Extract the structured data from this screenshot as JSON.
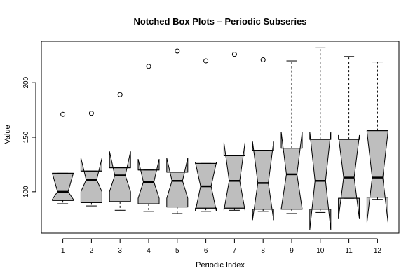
{
  "chart_data": {
    "type": "box",
    "title": "Notched Box Plots – Periodic Subseries",
    "xlabel": "Periodic Index",
    "ylabel": "Value",
    "ylim": [
      62,
      238
    ],
    "yticks": [
      100,
      150,
      200
    ],
    "box_fill": "#bebebe",
    "boxes": [
      {
        "label": "1",
        "lower_whisker": 89,
        "q1": 92,
        "median": 100,
        "q3": 117,
        "upper_whisker": 117,
        "notch_low": 93,
        "notch_high": 117,
        "outliers": [
          171
        ]
      },
      {
        "label": "2",
        "lower_whisker": 87,
        "q1": 90,
        "median": 111,
        "q3": 119,
        "upper_whisker": 119,
        "notch_low": 100,
        "notch_high": 131,
        "outliers": [
          172
        ]
      },
      {
        "label": "3",
        "lower_whisker": 83,
        "q1": 91,
        "median": 115,
        "q3": 122,
        "upper_whisker": 122,
        "notch_low": 100,
        "notch_high": 137,
        "outliers": [
          189
        ]
      },
      {
        "label": "4",
        "lower_whisker": 82,
        "q1": 89,
        "median": 109,
        "q3": 120,
        "upper_whisker": 120,
        "notch_low": 94,
        "notch_high": 130,
        "outliers": [
          215
        ]
      },
      {
        "label": "5",
        "lower_whisker": 80,
        "q1": 86,
        "median": 110,
        "q3": 118,
        "upper_whisker": 118,
        "notch_low": 94,
        "notch_high": 131,
        "outliers": [
          229
        ]
      },
      {
        "label": "6",
        "lower_whisker": 82,
        "q1": 85,
        "median": 105,
        "q3": 126,
        "upper_whisker": 126,
        "notch_low": 82,
        "notch_high": 127,
        "outliers": [
          220
        ]
      },
      {
        "label": "7",
        "lower_whisker": 83,
        "q1": 85,
        "median": 110,
        "q3": 133,
        "upper_whisker": 133,
        "notch_low": 83,
        "notch_high": 145,
        "outliers": [
          226
        ]
      },
      {
        "label": "8",
        "lower_whisker": 82,
        "q1": 84,
        "median": 108,
        "q3": 138,
        "upper_whisker": 138,
        "notch_low": 74,
        "notch_high": 146,
        "outliers": [
          221
        ]
      },
      {
        "label": "9",
        "lower_whisker": 80,
        "q1": 84,
        "median": 116,
        "q3": 140,
        "upper_whisker": 220,
        "notch_low": 84,
        "notch_high": 155,
        "outliers": []
      },
      {
        "label": "10",
        "lower_whisker": 81,
        "q1": 84,
        "median": 110,
        "q3": 148,
        "upper_whisker": 232,
        "notch_low": 65,
        "notch_high": 155,
        "outliers": []
      },
      {
        "label": "11",
        "lower_whisker": 94,
        "q1": 94,
        "median": 113,
        "q3": 148,
        "upper_whisker": 224,
        "notch_low": 75,
        "notch_high": 152,
        "outliers": []
      },
      {
        "label": "12",
        "lower_whisker": 93,
        "q1": 95,
        "median": 113,
        "q3": 156,
        "upper_whisker": 219,
        "notch_low": 72,
        "notch_high": 155,
        "outliers": []
      }
    ]
  }
}
